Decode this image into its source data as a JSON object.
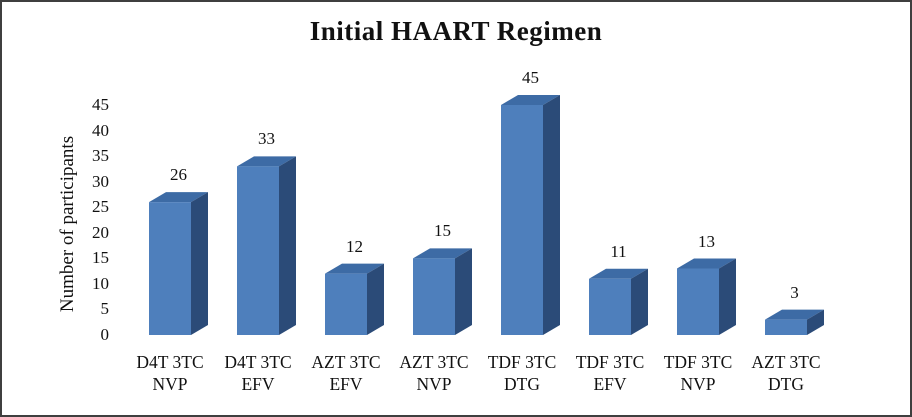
{
  "chart_data": {
    "type": "bar",
    "style": "3d-column",
    "title": "Initial HAART Regimen",
    "xlabel": "",
    "ylabel": "Number of participants",
    "categories": [
      "D4T 3TC NVP",
      "D4T 3TC EFV",
      "AZT 3TC EFV",
      "AZT 3TC NVP",
      "TDF 3TC DTG",
      "TDF 3TC EFV",
      "TDF 3TC NVP",
      "AZT 3TC DTG"
    ],
    "values": [
      26,
      33,
      12,
      15,
      45,
      11,
      13,
      3
    ],
    "data_labels": [
      "26",
      "33",
      "12",
      "15",
      "45",
      "11",
      "13",
      "3"
    ],
    "yticks": [
      0,
      5,
      10,
      15,
      20,
      25,
      30,
      35,
      40,
      45
    ],
    "ylim": [
      0,
      45
    ],
    "grid": false,
    "legend": null,
    "colors": {
      "bar_front": "#4E7FBC",
      "bar_top": "#3D6BA5",
      "bar_side": "#2B4B78",
      "text": "#111111",
      "background": "#ffffff",
      "frame_border": "#3f3f3f"
    }
  }
}
